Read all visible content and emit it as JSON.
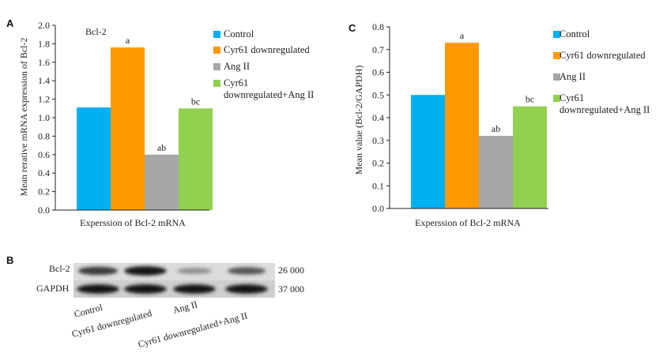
{
  "chart_data": [
    {
      "panel": "A",
      "type": "bar",
      "title": "Bcl-2",
      "xlabel": "Experssion of Bcl-2 mRNA",
      "ylabel": "Mean rerative mRNA expression of Bcl-2",
      "ylim": [
        0,
        2.0
      ],
      "yticks": [
        "0.0",
        "0.2",
        "0.4",
        "0.6",
        "0.8",
        "1.0",
        "1.2",
        "1.4",
        "1.6",
        "1.8",
        "2.0"
      ],
      "grid": false,
      "legend": "right",
      "categories": [
        "Control",
        "Cyr61 downregulated",
        "Ang II",
        "Cyr61 downregulated+Ang II"
      ],
      "values": [
        1.11,
        1.76,
        0.6,
        1.1
      ],
      "labels": [
        "",
        "a",
        "ab",
        "bc"
      ],
      "colors": [
        "#00b0f0",
        "#ff9900",
        "#a6a6a6",
        "#92d050"
      ]
    },
    {
      "panel": "C",
      "type": "bar",
      "title": "",
      "xlabel": "Experssion of Bcl-2 mRNA",
      "ylabel": "Mean value (Bcl-2/GAPDH)",
      "ylim": [
        0,
        0.8
      ],
      "yticks": [
        "0.0",
        "0.1",
        "0.2",
        "0.3",
        "0.4",
        "0.5",
        "0.6",
        "0.7",
        "0.8"
      ],
      "grid": false,
      "legend": "right",
      "categories": [
        "Control",
        "Cyr61 downregulated",
        "Ang II",
        "Cyr61 downregulated+Ang II"
      ],
      "values": [
        0.5,
        0.73,
        0.32,
        0.45
      ],
      "labels": [
        "",
        "a",
        "ab",
        "bc"
      ],
      "colors": [
        "#00b0f0",
        "#ff9900",
        "#a6a6a6",
        "#92d050"
      ]
    }
  ],
  "legend_a": [
    "Control",
    "Cyr61 downregulated",
    "Ang II",
    "Cyr61",
    "downregulated+Ang II"
  ],
  "legend_c": [
    "Control",
    "Cyr61 downregulated",
    "Ang II",
    "Cyr61",
    "downregulated+Ang II"
  ],
  "blot": {
    "panel": "B",
    "rows": [
      {
        "label": "Bcl-2",
        "mw": "26 000",
        "intensity": [
          0.75,
          0.95,
          0.3,
          0.6
        ]
      },
      {
        "label": "GAPDH",
        "mw": "37 000",
        "intensity": [
          0.95,
          0.95,
          0.95,
          0.95
        ]
      }
    ],
    "lanes": [
      "Control",
      "Cyr61 downregulated",
      "Ang II",
      "Cyr61 downregulated+Ang II"
    ]
  }
}
